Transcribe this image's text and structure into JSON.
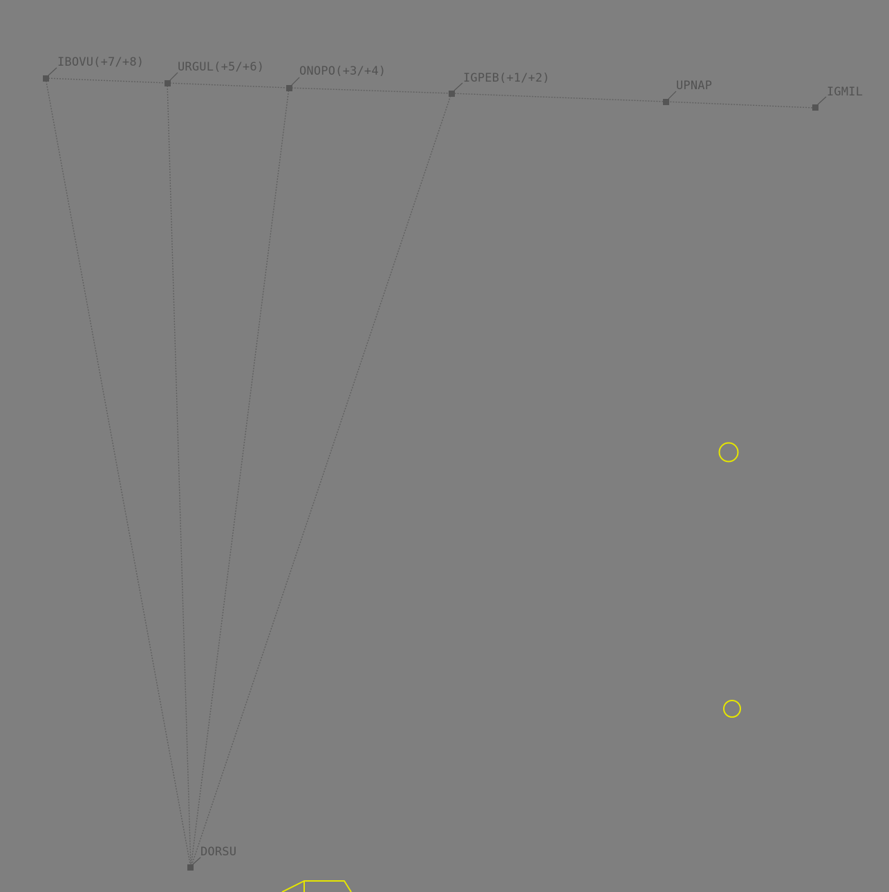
{
  "fixes": {
    "ibovu": {
      "label": "IBOVU(+7/+8)"
    },
    "urgul": {
      "label": "URGUL(+5/+6)"
    },
    "onopo": {
      "label": "ONOPO(+3/+4)"
    },
    "igpeb": {
      "label": "IGPEB(+1/+2)"
    },
    "upnap": {
      "label": "UPNAP"
    },
    "igmil": {
      "label": "IGMIL"
    },
    "dorsu": {
      "label": "DORSU"
    }
  },
  "colors": {
    "background": "#7f7f7f",
    "route": "#5f5f5f",
    "fix": "#555555",
    "label": "#525252",
    "traffic": "#e6e600"
  },
  "symbols": {
    "fix_symbol": "filled-square",
    "traffic_symbol": "circle"
  }
}
